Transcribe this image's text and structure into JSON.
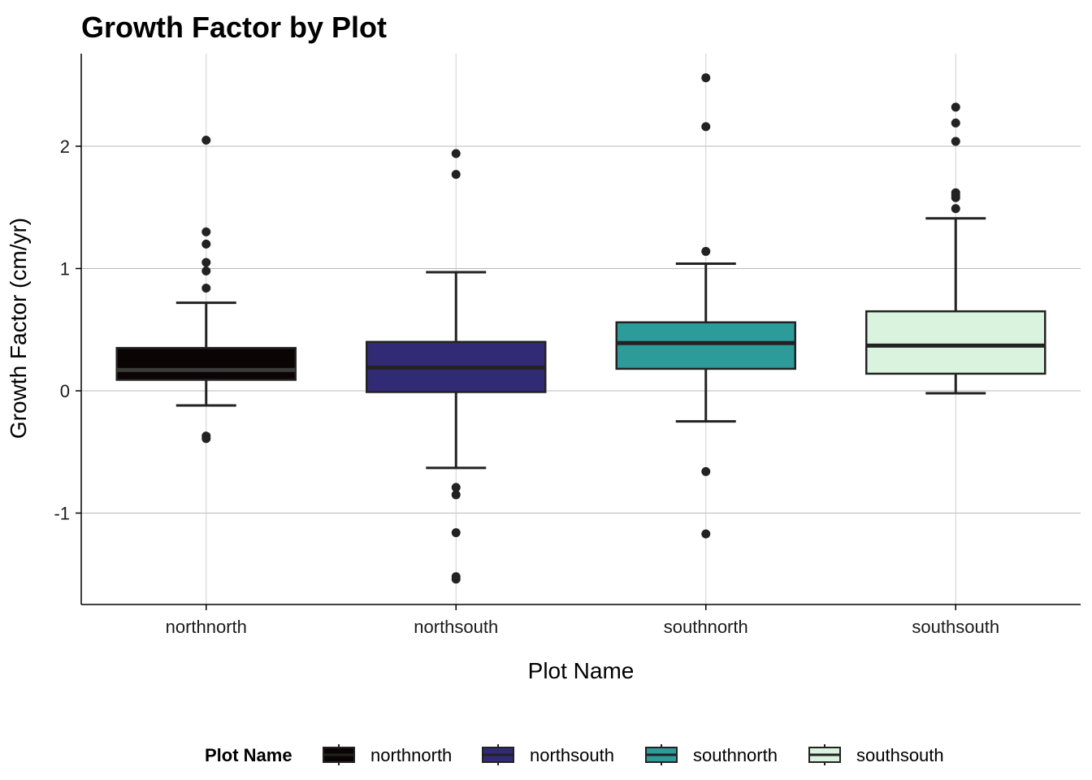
{
  "chart_data": {
    "type": "box",
    "title": "Growth Factor by Plot",
    "xlabel": "Plot Name",
    "ylabel": "Growth Factor (cm/yr)",
    "ylim": [
      -1.75,
      2.75
    ],
    "yticks": [
      -1,
      0,
      1,
      2
    ],
    "grid": true,
    "legend": {
      "title": "Plot Name",
      "position": "bottom"
    },
    "categories": [
      "northnorth",
      "northsouth",
      "southnorth",
      "southsouth"
    ],
    "series": [
      {
        "name": "northnorth",
        "color": "#0b0405",
        "whisker_low": -0.12,
        "q1": 0.09,
        "median": 0.17,
        "q3": 0.35,
        "whisker_high": 0.72,
        "outliers": [
          2.05,
          1.3,
          1.2,
          1.05,
          0.98,
          0.84,
          -0.37,
          -0.39
        ]
      },
      {
        "name": "northsouth",
        "color": "#312b76",
        "whisker_low": -0.63,
        "q1": -0.01,
        "median": 0.19,
        "q3": 0.4,
        "whisker_high": 0.97,
        "outliers": [
          1.94,
          1.77,
          -0.79,
          -0.85,
          -1.16,
          -1.52,
          -1.54
        ]
      },
      {
        "name": "southnorth",
        "color": "#2e9b9b",
        "whisker_low": -0.25,
        "q1": 0.18,
        "median": 0.39,
        "q3": 0.56,
        "whisker_high": 1.04,
        "outliers": [
          2.56,
          2.16,
          1.14,
          -0.66,
          -1.17
        ]
      },
      {
        "name": "southsouth",
        "color": "#daf3df",
        "whisker_low": -0.02,
        "q1": 0.14,
        "median": 0.37,
        "q3": 0.65,
        "whisker_high": 1.41,
        "outliers": [
          2.32,
          2.19,
          2.04,
          1.62,
          1.6,
          1.58,
          1.49
        ]
      }
    ]
  }
}
